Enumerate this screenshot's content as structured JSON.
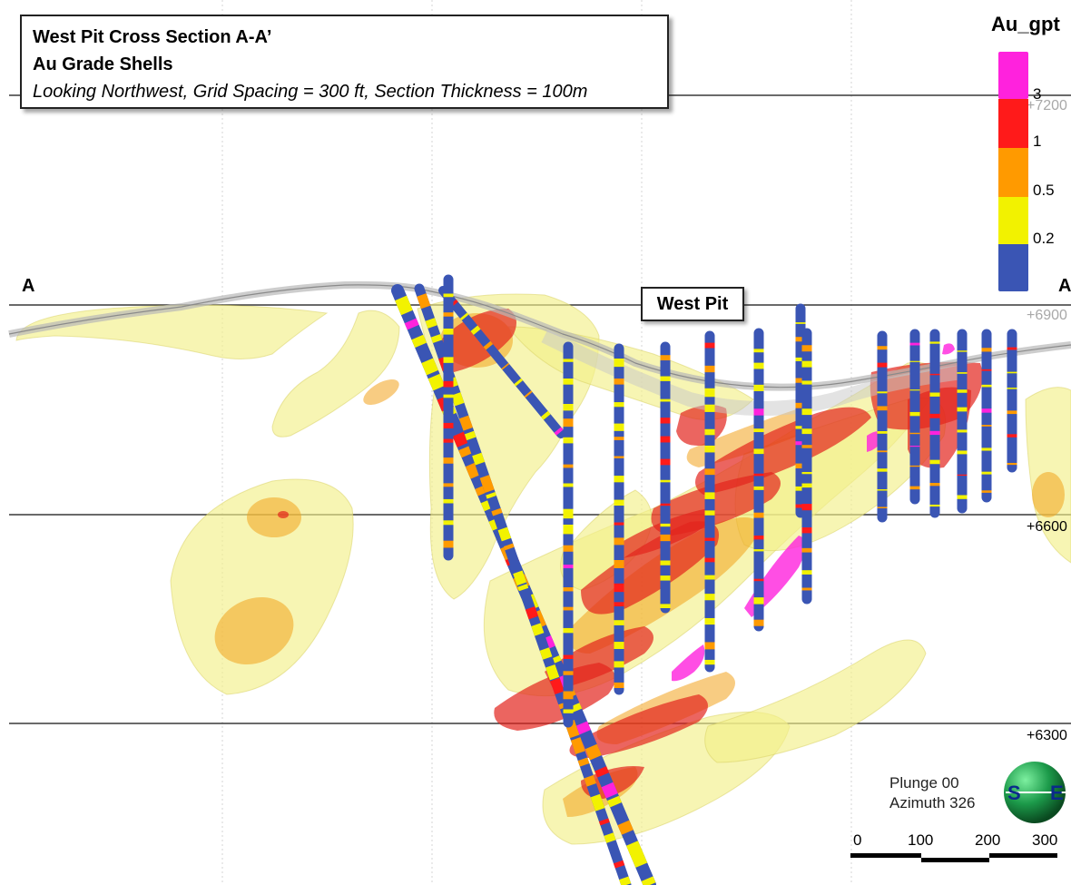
{
  "title": {
    "line1": "West Pit Cross Section A-A’",
    "line2": "Au Grade Shells",
    "line3": "Looking Northwest, Grid Spacing = 300 ft, Section Thickness = 100m"
  },
  "pit_label": "West Pit",
  "section_marks": {
    "start": "A",
    "end": "A"
  },
  "legend": {
    "title": "Au_gpt",
    "bins": [
      {
        "color": "#ff22dd",
        "label": "3"
      },
      {
        "color": "#ff1a1a",
        "label": "1"
      },
      {
        "color": "#ff9a00",
        "label": "0.5"
      },
      {
        "color": "#f2f200",
        "label": "0.2"
      },
      {
        "color": "#3a55b4",
        "label": ""
      }
    ]
  },
  "elevations": [
    "+7200",
    "+6900",
    "+6600",
    "+6300"
  ],
  "orientation": {
    "plunge": "Plunge 00",
    "azimuth": "Azimuth 326"
  },
  "compass_icon": "s-e-orientation-sphere-icon",
  "scale_bar": {
    "labels": [
      "0",
      "100",
      "200",
      "300"
    ]
  },
  "colors": {
    "shell_low": "#f3f08a",
    "shell_mid": "#f2a21c",
    "shell_high": "#e3241c",
    "drill_hole": "#3a55b4",
    "topography": "#b8b8b8"
  }
}
